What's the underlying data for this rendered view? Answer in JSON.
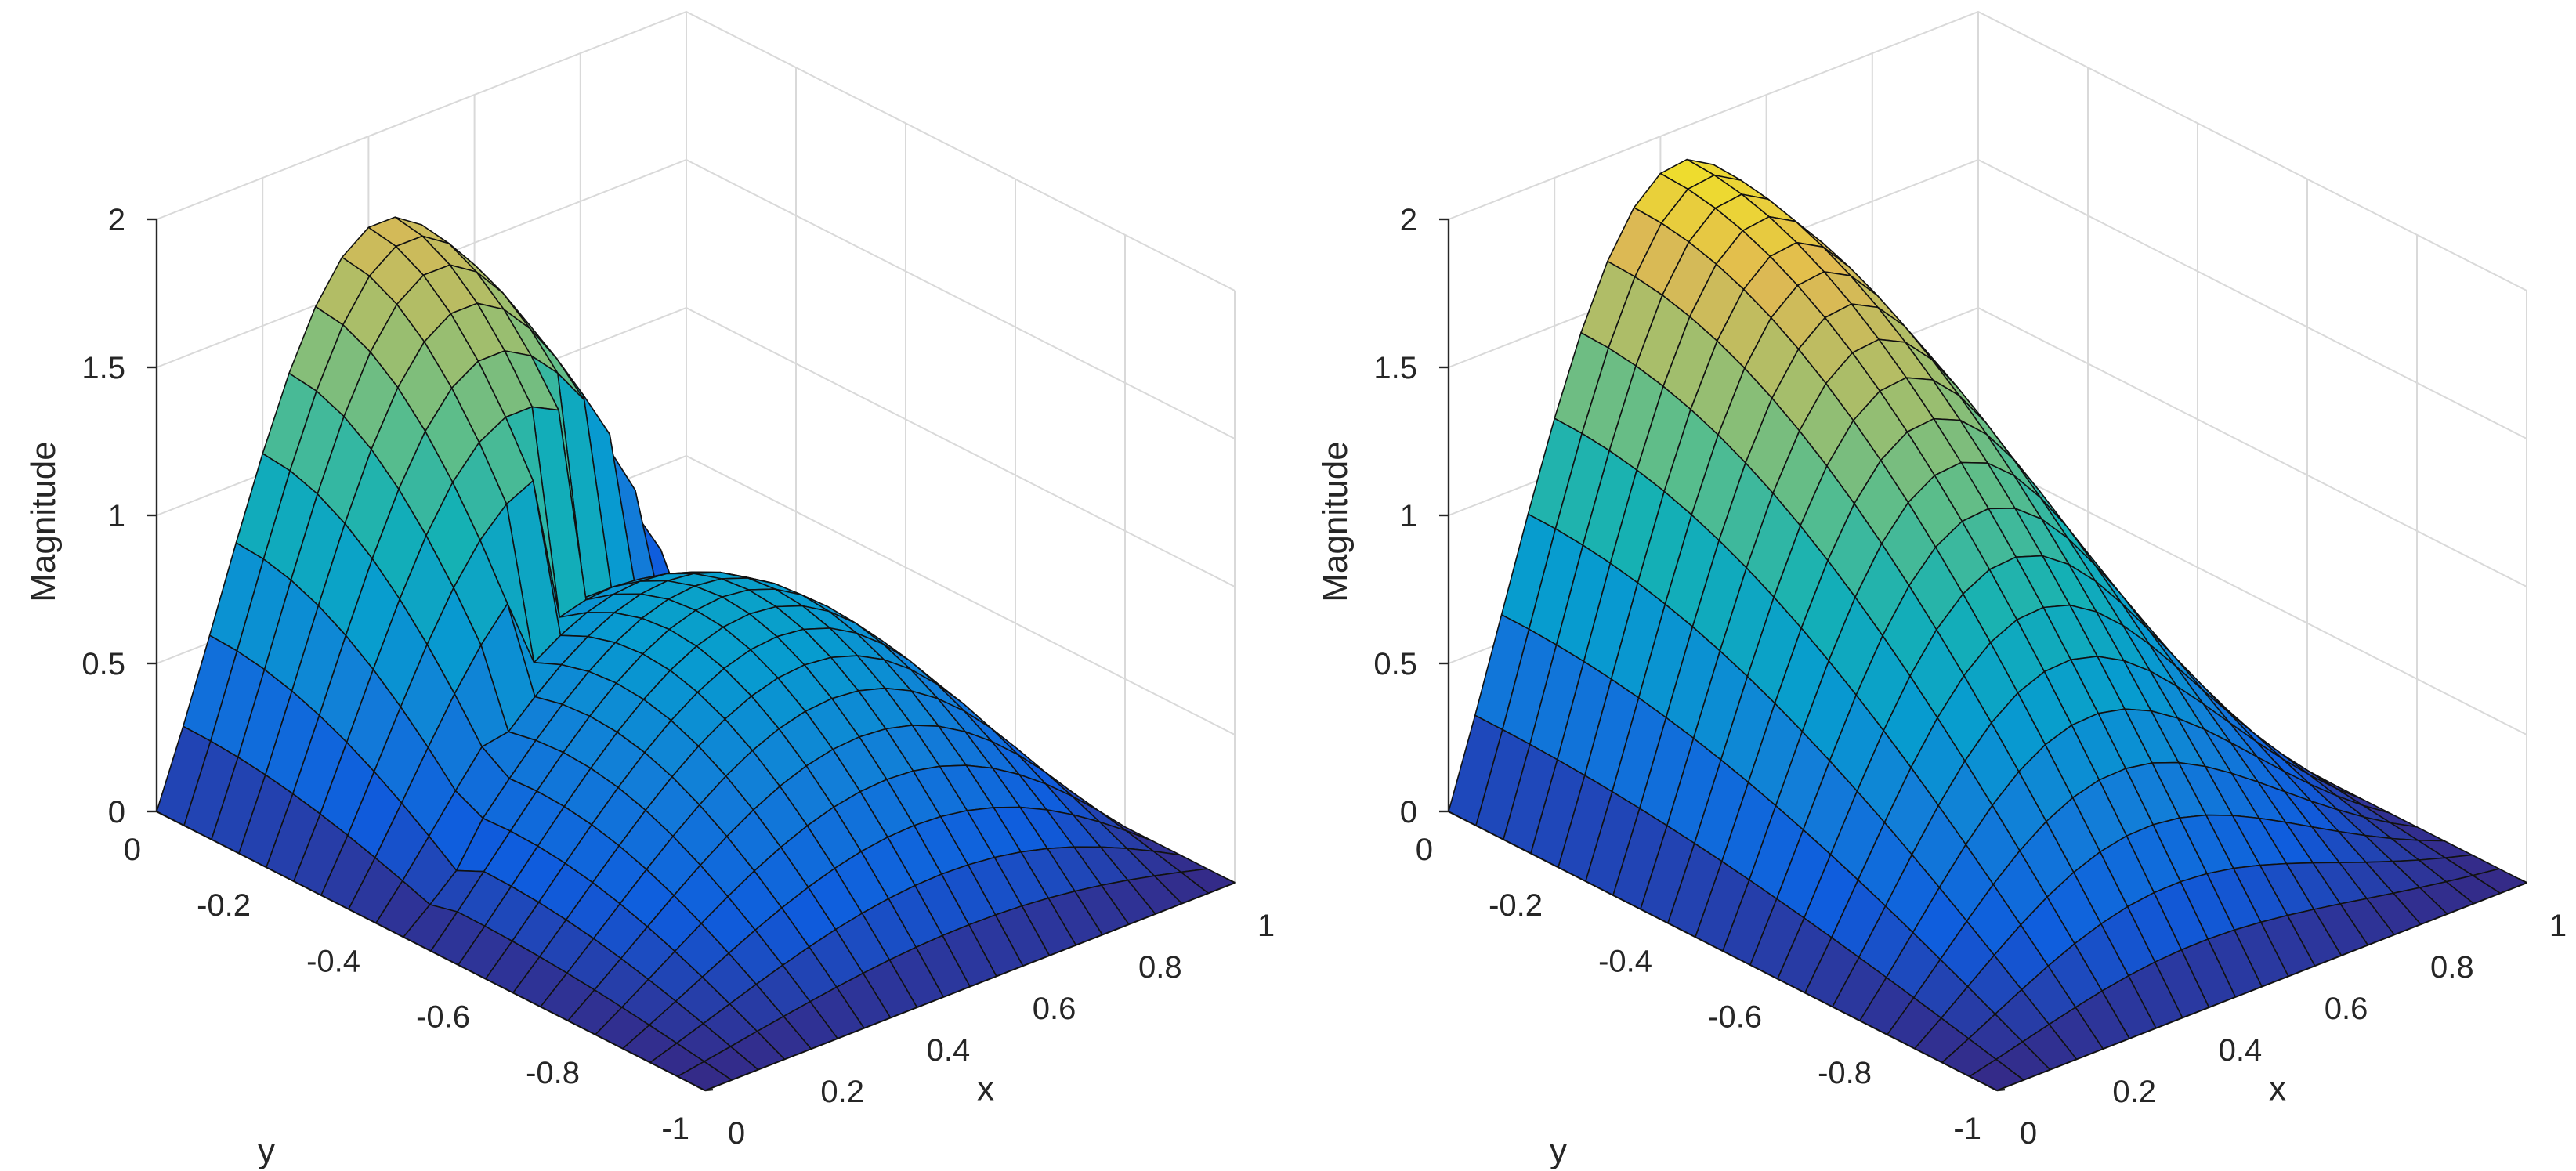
{
  "chart_data": [
    {
      "type": "surface",
      "description_free": true,
      "xlabel": "x",
      "ylabel": "y",
      "zlabel": "Magnitude",
      "xlim": [
        0,
        1
      ],
      "ylim": [
        -1,
        0
      ],
      "zlim": [
        0,
        2
      ],
      "xticks": [
        "0",
        "0.2",
        "0.4",
        "0.6",
        "0.8",
        "1"
      ],
      "yticks": [
        "0",
        "-0.2",
        "-0.4",
        "-0.6",
        "-0.8",
        "-1"
      ],
      "zticks": [
        "0",
        "0.5",
        "1",
        "1.5",
        "2"
      ],
      "grid": true,
      "colormap": "parula",
      "mesh": [
        20,
        20
      ],
      "surface_model": "split",
      "peak_value": 1.85,
      "peak_x": 0.28,
      "peak_y": 0.0,
      "cut_line": "y = -0.5 + 0.5*x (surface discontinuity)",
      "lower_region_peak": 1.0
    },
    {
      "type": "surface",
      "xlabel": "x",
      "ylabel": "y",
      "zlabel": "Magnitude",
      "xlim": [
        0,
        1
      ],
      "ylim": [
        -1,
        0
      ],
      "zlim": [
        0,
        2
      ],
      "xticks": [
        "0",
        "0.2",
        "0.4",
        "0.6",
        "0.8",
        "1"
      ],
      "yticks": [
        "0",
        "-0.2",
        "-0.4",
        "-0.6",
        "-0.8",
        "-1"
      ],
      "zticks": [
        "0",
        "0.5",
        "1",
        "1.5",
        "2"
      ],
      "grid": true,
      "colormap": "parula",
      "mesh": [
        20,
        20
      ],
      "surface_model": "smooth",
      "peak_value": 2.0,
      "peak_x": 0.27,
      "peak_y": 0.0
    }
  ]
}
